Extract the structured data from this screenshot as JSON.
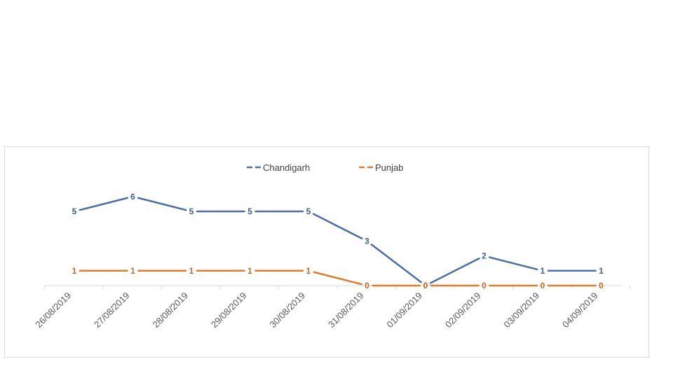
{
  "chart_data": {
    "type": "line",
    "categories": [
      "26/08/2019",
      "27/08/2019",
      "28/08/2019",
      "29/08/2019",
      "30/08/2019",
      "31/08/2019",
      "01/09/2019",
      "02/09/2019",
      "03/09/2019",
      "04/09/2019"
    ],
    "series": [
      {
        "name": "Chandigarh",
        "color": "#4a6fa5",
        "values": [
          5,
          6,
          5,
          5,
          5,
          3,
          0,
          2,
          1,
          1
        ]
      },
      {
        "name": "Punjab",
        "color": "#e07b2c",
        "values": [
          1,
          1,
          1,
          1,
          1,
          0,
          0,
          0,
          0,
          0
        ]
      }
    ],
    "ylim": [
      0,
      6
    ],
    "legend_position": "top-center",
    "grid": false,
    "data_labels": true
  }
}
